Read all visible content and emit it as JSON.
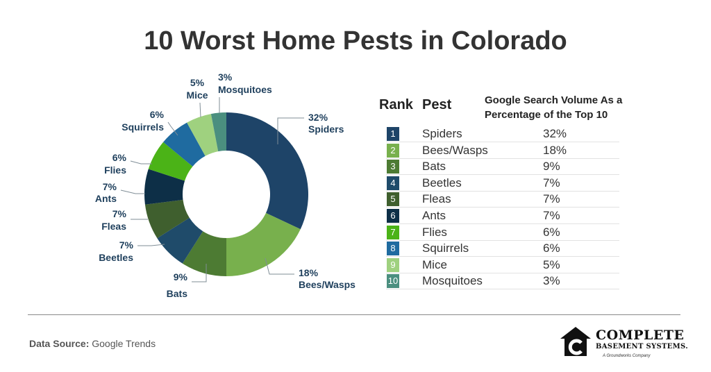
{
  "page": {
    "title": "10 Worst Home Pests in Colorado"
  },
  "chart_data": {
    "type": "pie",
    "title": "10 Worst Home Pests in Colorado",
    "categories": [
      "Spiders",
      "Bees/Wasps",
      "Bats",
      "Beetles",
      "Fleas",
      "Ants",
      "Flies",
      "Squirrels",
      "Mice",
      "Mosquitoes"
    ],
    "values": [
      32,
      18,
      9,
      7,
      7,
      7,
      6,
      6,
      5,
      3
    ],
    "value_labels": [
      "32%",
      "18%",
      "9%",
      "7%",
      "7%",
      "7%",
      "6%",
      "6%",
      "5%",
      "3%"
    ],
    "colors": [
      "#1e4468",
      "#78b04d",
      "#4d7b33",
      "#1f4b6a",
      "#3f5f2e",
      "#0d2f47",
      "#4bb317",
      "#1f6ba0",
      "#9fd17f",
      "#4b8f7f"
    ],
    "style": "donut"
  },
  "table": {
    "headers": {
      "rank": "Rank",
      "pest": "Pest",
      "volume": "Google Search Volume As a Percentage of the Top 10"
    },
    "rows": [
      {
        "rank": "1",
        "pest": "Spiders",
        "pct": "32%"
      },
      {
        "rank": "2",
        "pest": "Bees/Wasps",
        "pct": "18%"
      },
      {
        "rank": "3",
        "pest": "Bats",
        "pct": "9%"
      },
      {
        "rank": "4",
        "pest": "Beetles",
        "pct": "7%"
      },
      {
        "rank": "5",
        "pest": "Fleas",
        "pct": "7%"
      },
      {
        "rank": "6",
        "pest": "Ants",
        "pct": "7%"
      },
      {
        "rank": "7",
        "pest": "Flies",
        "pct": "6%"
      },
      {
        "rank": "8",
        "pest": "Squirrels",
        "pct": "6%"
      },
      {
        "rank": "9",
        "pest": "Mice",
        "pct": "5%"
      },
      {
        "rank": "10",
        "pest": "Mosquitoes",
        "pct": "3%"
      }
    ]
  },
  "footer": {
    "source_label": "Data Source:",
    "source_value": "Google Trends"
  },
  "logo": {
    "line1": "COMPLETE",
    "line2": "BASEMENT SYSTEMS.",
    "tagline": "A Groundworks Company",
    "icon": "house-c-logo-icon"
  }
}
